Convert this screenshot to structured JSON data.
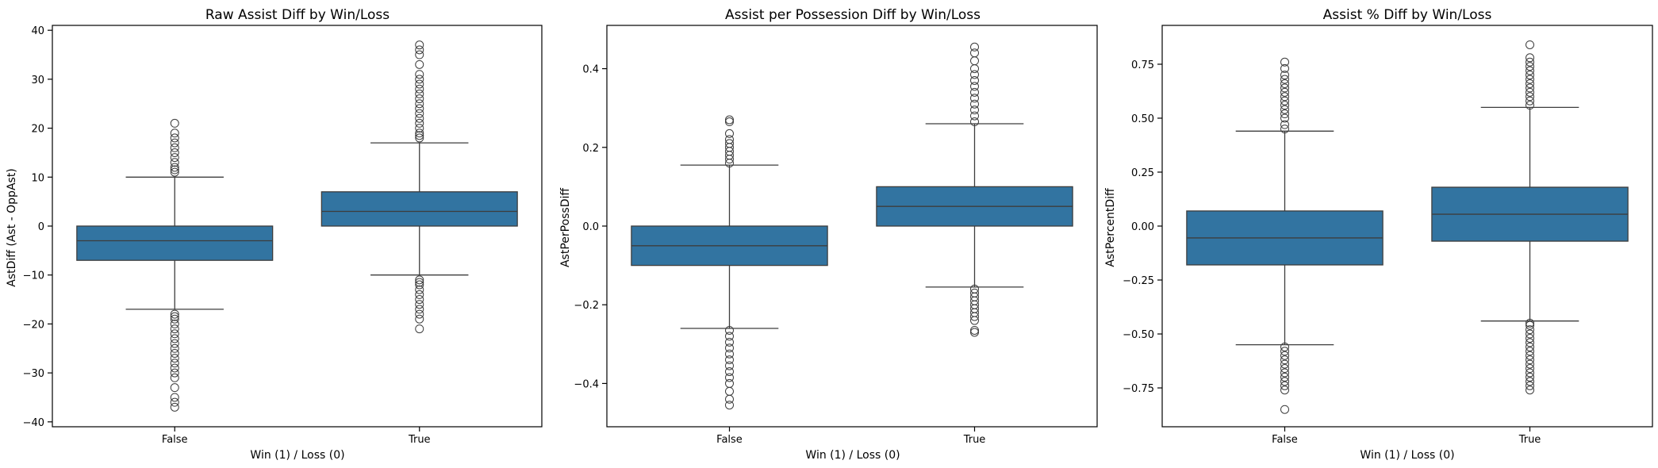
{
  "chart_data": [
    {
      "type": "box",
      "title": "Raw Assist Diff by Win/Loss",
      "xlabel": "Win (1) / Loss (0)",
      "ylabel": "AstDiff (Ast - OppAst)",
      "categories": [
        "False",
        "True"
      ],
      "yticks": [
        -40,
        -30,
        -20,
        -10,
        0,
        10,
        20,
        30,
        40
      ],
      "tick_labels": [
        "−40",
        "−30",
        "−20",
        "−10",
        "0",
        "10",
        "20",
        "30",
        "40"
      ],
      "ylim": [
        -41,
        41
      ],
      "boxes": [
        {
          "category": "False",
          "whislo": -17,
          "q1": -7,
          "med": -3,
          "q3": 0,
          "whishi": 10,
          "fliers": [
            -37,
            -36,
            -35,
            -33,
            -31,
            -30,
            -29,
            -28,
            -27,
            -26,
            -25,
            -24,
            -23,
            -22,
            -21,
            -20,
            -19,
            -18.5,
            -18,
            11,
            11.5,
            12,
            13,
            14,
            15,
            16,
            17,
            18,
            19,
            21
          ]
        },
        {
          "category": "True",
          "whislo": -10,
          "q1": 0,
          "med": 3,
          "q3": 7,
          "whishi": 17,
          "fliers": [
            -21,
            -19,
            -18,
            -17,
            -16,
            -15,
            -14,
            -13,
            -12,
            -11.5,
            -11,
            18,
            18.5,
            19,
            20,
            21,
            22,
            23,
            24,
            25,
            26,
            27,
            28,
            29,
            30,
            31,
            33,
            35,
            36,
            37
          ]
        }
      ]
    },
    {
      "type": "box",
      "title": "Assist per Possession Diff by Win/Loss",
      "xlabel": "Win (1) / Loss (0)",
      "ylabel": "AstPerPossDiff",
      "categories": [
        "False",
        "True"
      ],
      "yticks": [
        -0.4,
        -0.2,
        0.0,
        0.2,
        0.4
      ],
      "tick_labels": [
        "−0.4",
        "−0.2",
        "0.0",
        "0.2",
        "0.4"
      ],
      "ylim": [
        -0.51,
        0.51
      ],
      "boxes": [
        {
          "category": "False",
          "whislo": -0.26,
          "q1": -0.1,
          "med": -0.05,
          "q3": 0.0,
          "whishi": 0.155,
          "fliers": [
            -0.455,
            -0.44,
            -0.42,
            -0.4,
            -0.385,
            -0.37,
            -0.355,
            -0.34,
            -0.325,
            -0.31,
            -0.295,
            -0.28,
            -0.265,
            0.16,
            0.17,
            0.18,
            0.19,
            0.2,
            0.21,
            0.22,
            0.235,
            0.265,
            0.27
          ]
        },
        {
          "category": "True",
          "whislo": -0.155,
          "q1": 0.0,
          "med": 0.05,
          "q3": 0.1,
          "whishi": 0.26,
          "fliers": [
            -0.27,
            -0.265,
            -0.24,
            -0.23,
            -0.22,
            -0.21,
            -0.2,
            -0.19,
            -0.18,
            -0.17,
            -0.16,
            0.265,
            0.28,
            0.295,
            0.31,
            0.325,
            0.34,
            0.355,
            0.37,
            0.385,
            0.4,
            0.42,
            0.44,
            0.455
          ]
        }
      ]
    },
    {
      "type": "box",
      "title": "Assist % Diff by Win/Loss",
      "xlabel": "Win (1) / Loss (0)",
      "ylabel": "AstPercentDiff",
      "categories": [
        "False",
        "True"
      ],
      "yticks": [
        -0.75,
        -0.5,
        -0.25,
        0.0,
        0.25,
        0.5,
        0.75
      ],
      "tick_labels": [
        "−0.75",
        "−0.50",
        "−0.25",
        "0.00",
        "0.25",
        "0.50",
        "0.75"
      ],
      "ylim": [
        -0.93,
        0.93
      ],
      "boxes": [
        {
          "category": "False",
          "whislo": -0.55,
          "q1": -0.18,
          "med": -0.055,
          "q3": 0.07,
          "whishi": 0.44,
          "fliers": [
            -0.85,
            -0.76,
            -0.74,
            -0.72,
            -0.7,
            -0.68,
            -0.66,
            -0.64,
            -0.62,
            -0.6,
            -0.58,
            -0.56,
            0.45,
            0.47,
            0.5,
            0.52,
            0.54,
            0.56,
            0.58,
            0.6,
            0.62,
            0.64,
            0.66,
            0.68,
            0.7,
            0.73,
            0.76
          ]
        },
        {
          "category": "True",
          "whislo": -0.44,
          "q1": -0.07,
          "med": 0.055,
          "q3": 0.18,
          "whishi": 0.55,
          "fliers": [
            -0.76,
            -0.74,
            -0.72,
            -0.7,
            -0.68,
            -0.66,
            -0.64,
            -0.62,
            -0.6,
            -0.58,
            -0.56,
            -0.54,
            -0.52,
            -0.5,
            -0.48,
            -0.46,
            -0.45,
            0.56,
            0.58,
            0.6,
            0.62,
            0.64,
            0.66,
            0.68,
            0.7,
            0.72,
            0.74,
            0.76,
            0.78,
            0.84
          ]
        }
      ]
    }
  ],
  "colors": {
    "box_fill": "#3274a1",
    "line": "#3d3d3d",
    "axis": "#000000"
  }
}
